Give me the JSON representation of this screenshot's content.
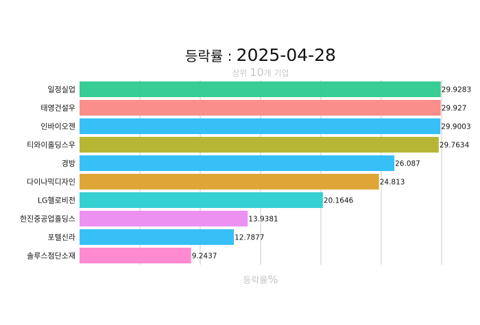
{
  "title_prefix": "등락률 : ",
  "title_date": "2025-04-28",
  "subtitle_prefix": "상위 ",
  "subtitle_number": "10",
  "subtitle_suffix": "개 기업",
  "xlabel_prefix": "등락률",
  "xlabel_unit": "%",
  "chart_data": {
    "type": "bar",
    "orientation": "horizontal",
    "title": "등락률 : 2025-04-28",
    "subtitle": "상위 10개 기업",
    "xlabel": "등락률%",
    "ylabel": "",
    "xlim": [
      0,
      30
    ],
    "grid": "vertical",
    "legend": "none",
    "categories": [
      "일정실업",
      "태영건설우",
      "인바이오젠",
      "티와이홀딩스우",
      "경방",
      "다이나믹디자인",
      "LG헬로비전",
      "한진중공업홀딩스",
      "포텔신라",
      "솔루스첨단소재"
    ],
    "values": [
      29.9283,
      29.927,
      29.9003,
      29.7634,
      26.087,
      24.813,
      20.1646,
      13.9381,
      12.7877,
      9.2437
    ],
    "value_labels": [
      "29.9283",
      "29.927",
      "29.9003",
      "29.7634",
      "26.087",
      "24.813",
      "20.1646",
      "13.9381",
      "12.7877",
      "9.2437"
    ],
    "colors": [
      "#33cc92",
      "#fa8c88",
      "#33bff7",
      "#b5b530",
      "#33bff7",
      "#dea433",
      "#33cfd1",
      "#ec8ff2",
      "#33bff7",
      "#ff88cf"
    ]
  }
}
